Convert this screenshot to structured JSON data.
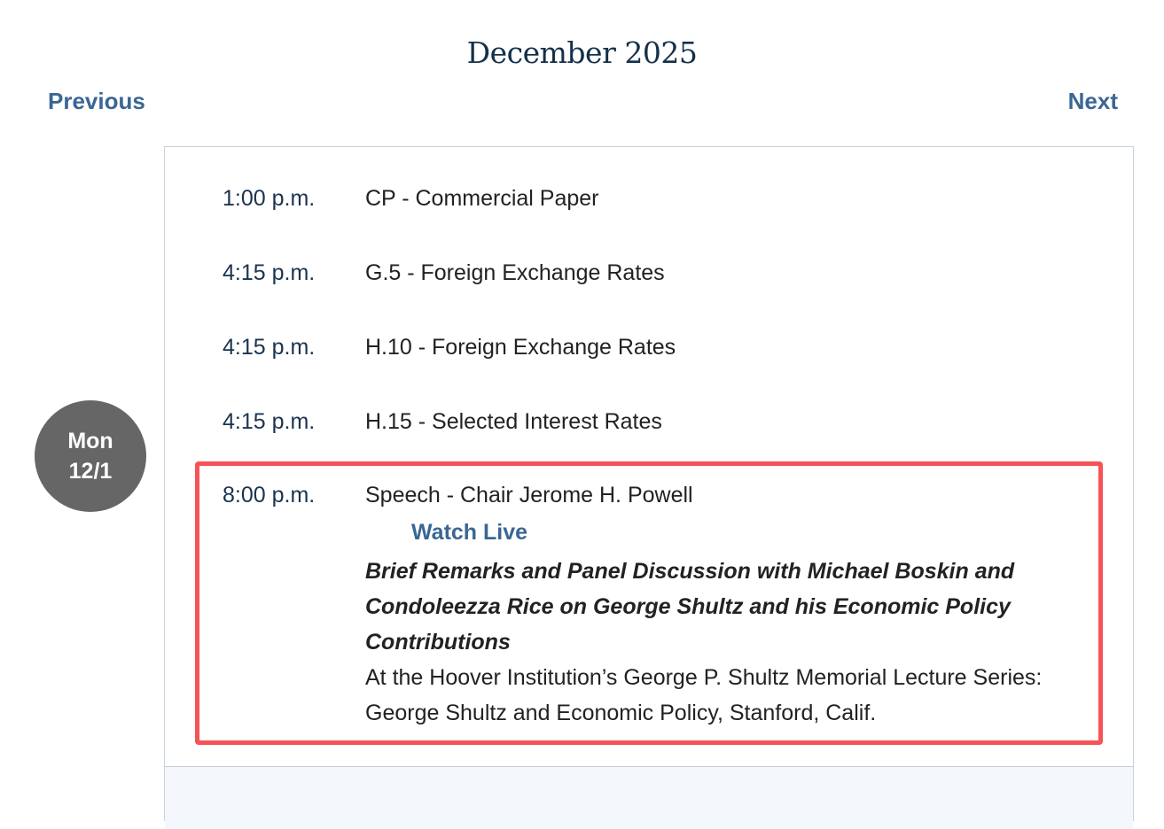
{
  "header": {
    "title": "December 2025",
    "previous_label": "Previous",
    "next_label": "Next"
  },
  "day": {
    "weekday": "Mon",
    "date": "12/1"
  },
  "events": [
    {
      "time": "1:00 p.m.",
      "title": "CP - Commercial Paper"
    },
    {
      "time": "4:15 p.m.",
      "title": "G.5 - Foreign Exchange Rates"
    },
    {
      "time": "4:15 p.m.",
      "title": "H.10 - Foreign Exchange Rates"
    },
    {
      "time": "4:15 p.m.",
      "title": "H.15 - Selected Interest Rates"
    },
    {
      "time": "8:00 p.m.",
      "title": "Speech - Chair Jerome H. Powell",
      "link": "Watch Live",
      "subtitle": "Brief Remarks and Panel Discussion with Michael Boskin and Condoleezza Rice on George Shultz and his Economic Policy Contributions",
      "location": "At the Hoover Institution’s George P. Shultz Memorial Lecture Series: George Shultz and Economic Policy, Stanford, Calif."
    }
  ],
  "colors": {
    "link": "#3a6693",
    "highlight": "#f55356",
    "day_badge": "#666666"
  }
}
